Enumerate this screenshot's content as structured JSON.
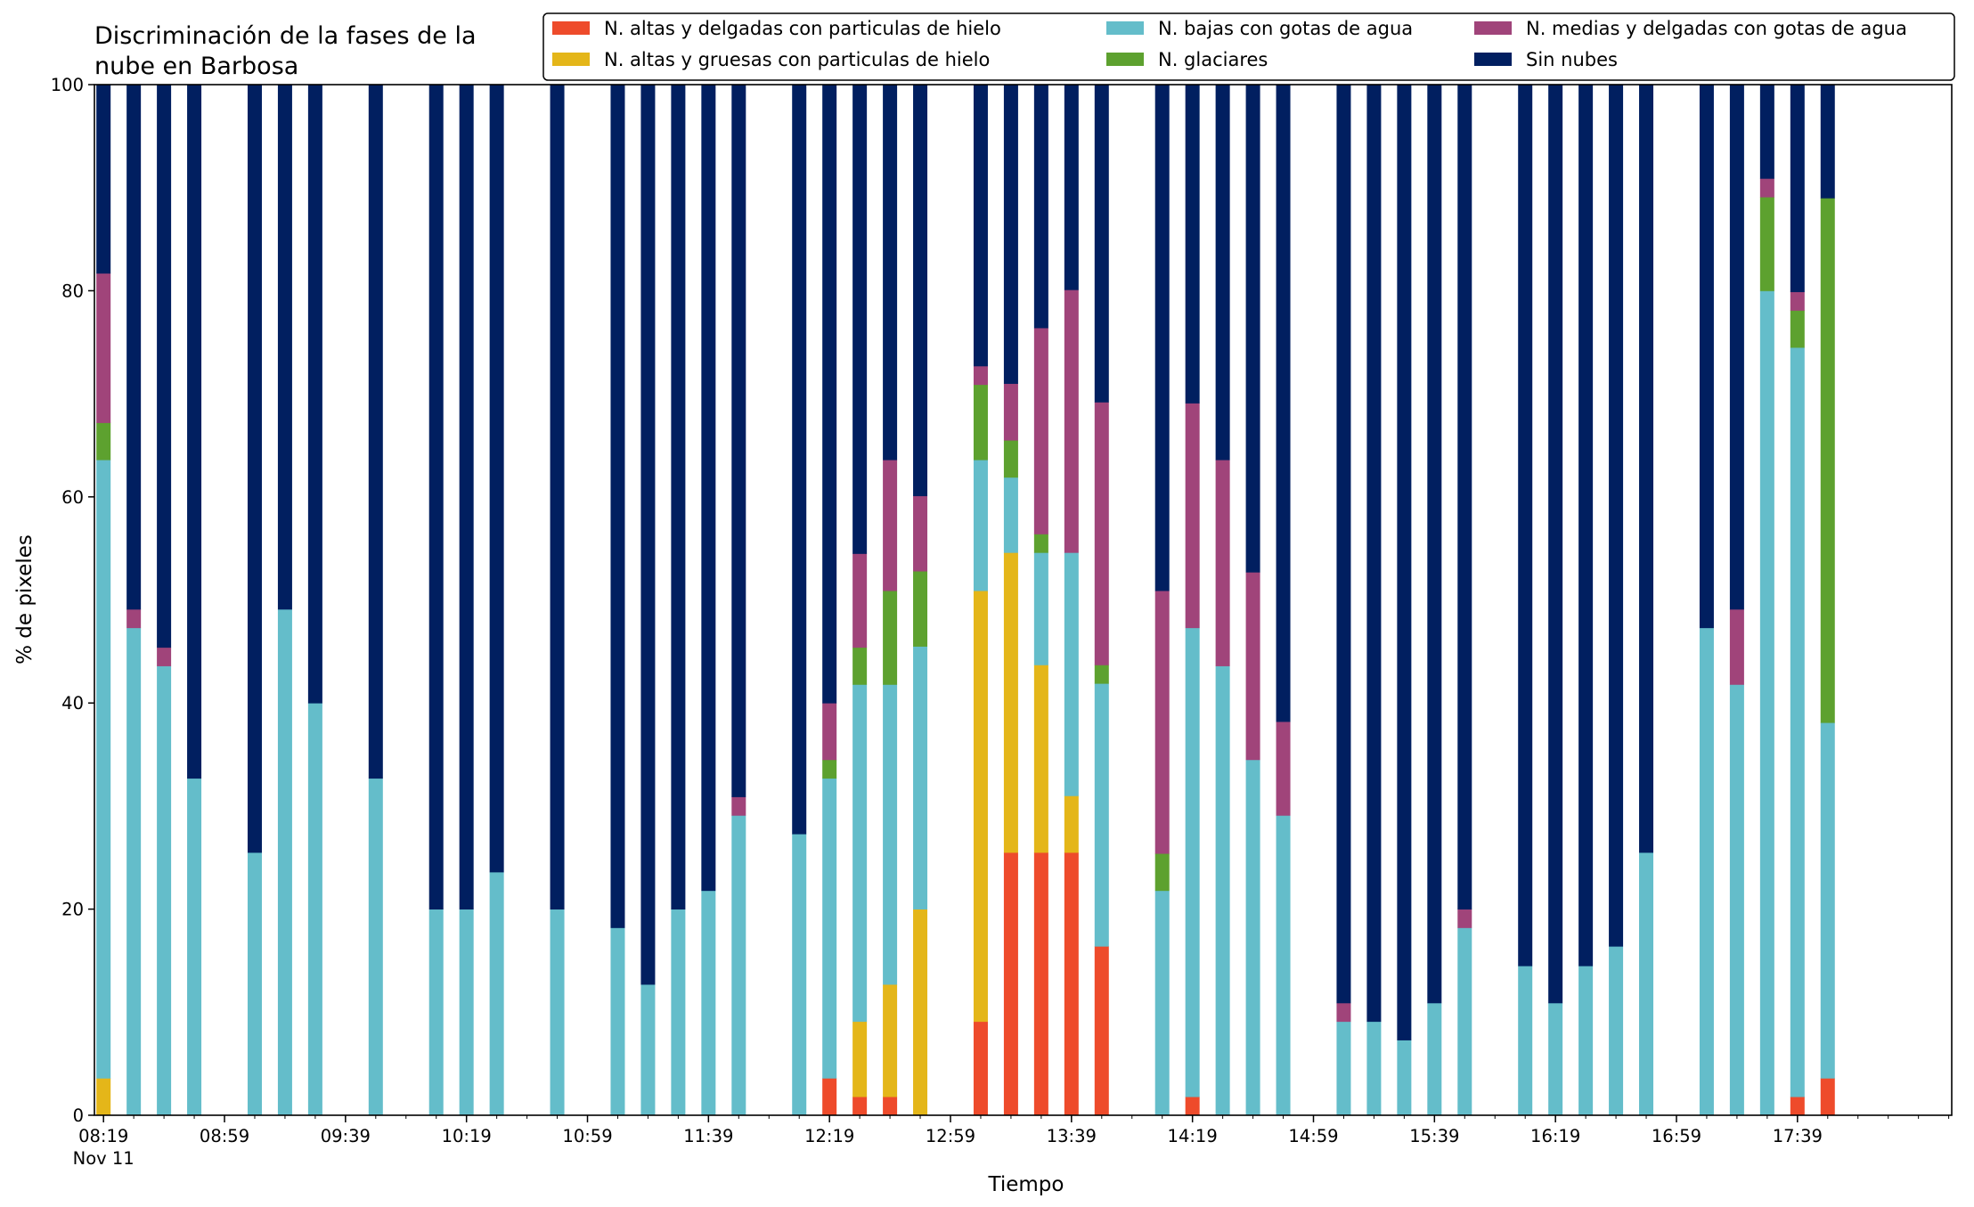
{
  "chart_data": {
    "type": "bar",
    "stacked": true,
    "title": "Discriminación de la fases de la nube en Barbosa",
    "title_lines": [
      "Discriminación de la fases de la",
      "nube en Barbosa"
    ],
    "xlabel": "Tiempo",
    "ylabel": "% de pixeles",
    "ylim": [
      0,
      100
    ],
    "yticks": [
      "0",
      "20",
      "40",
      "60",
      "80",
      "100"
    ],
    "x_ticks": [
      "08:19",
      "08:59",
      "09:39",
      "10:19",
      "10:59",
      "11:39",
      "12:19",
      "12:59",
      "13:39",
      "14:19",
      "14:59",
      "15:39",
      "16:19",
      "16:59",
      "17:39"
    ],
    "x_sub_label": "Nov 11",
    "x_range": [
      "08:16",
      "18:30"
    ],
    "grid": false,
    "legend_position": "top-right",
    "colors": {
      "alto_delgado_hielo": "#ee4b2b",
      "alto_grueso_hielo": "#e4b619",
      "bajo_agua": "#64bdca",
      "glaciar": "#5da12f",
      "medio_agua": "#a0447a",
      "sin_nubes": "#011f60"
    },
    "series": [
      {
        "key": "alto_delgado_hielo",
        "name": "N. altas y delgadas con particulas de hielo"
      },
      {
        "key": "alto_grueso_hielo",
        "name": "N. altas y gruesas con particulas de hielo"
      },
      {
        "key": "bajo_agua",
        "name": "N. bajas con gotas de agua"
      },
      {
        "key": "glaciar",
        "name": "N. glaciares"
      },
      {
        "key": "medio_agua",
        "name": "N. medias y delgadas con gotas de agua"
      },
      {
        "key": "sin_nubes",
        "name": "Sin nubes"
      }
    ],
    "bars": [
      {
        "time": "08:19",
        "values": [
          0,
          3.6,
          60,
          3.6,
          14.5,
          18.3
        ]
      },
      {
        "time": "08:29",
        "values": [
          0,
          0,
          47.3,
          0,
          1.8,
          50.9
        ]
      },
      {
        "time": "08:39",
        "values": [
          0,
          0,
          43.6,
          0,
          1.8,
          54.6
        ]
      },
      {
        "time": "08:49",
        "values": [
          0,
          0,
          32.7,
          0,
          0,
          67.3
        ]
      },
      {
        "time": "09:09",
        "values": [
          0,
          0,
          25.5,
          0,
          0,
          74.5
        ]
      },
      {
        "time": "09:19",
        "values": [
          0,
          0,
          49.1,
          0,
          0,
          50.9
        ]
      },
      {
        "time": "09:29",
        "values": [
          0,
          0,
          40,
          0,
          0,
          60
        ]
      },
      {
        "time": "09:49",
        "values": [
          0,
          0,
          32.7,
          0,
          0,
          67.3
        ]
      },
      {
        "time": "10:09",
        "values": [
          0,
          0,
          20,
          0,
          0,
          80
        ]
      },
      {
        "time": "10:19",
        "values": [
          0,
          0,
          20,
          0,
          0,
          80
        ]
      },
      {
        "time": "10:29",
        "values": [
          0,
          0,
          23.6,
          0,
          0,
          76.4
        ]
      },
      {
        "time": "10:49",
        "values": [
          0,
          0,
          20,
          0,
          0,
          80
        ]
      },
      {
        "time": "11:09",
        "values": [
          0,
          0,
          18.2,
          0,
          0,
          81.8
        ]
      },
      {
        "time": "11:19",
        "values": [
          0,
          0,
          12.7,
          0,
          0,
          87.3
        ]
      },
      {
        "time": "11:29",
        "values": [
          0,
          0,
          20,
          0,
          0,
          80
        ]
      },
      {
        "time": "11:39",
        "values": [
          0,
          0,
          21.8,
          0,
          0,
          78.2
        ]
      },
      {
        "time": "11:49",
        "values": [
          0,
          0,
          29.1,
          0,
          1.8,
          69.1
        ]
      },
      {
        "time": "12:09",
        "values": [
          0,
          0,
          27.3,
          0,
          0,
          72.7
        ]
      },
      {
        "time": "12:19",
        "values": [
          3.6,
          0,
          29.1,
          1.8,
          5.5,
          60
        ]
      },
      {
        "time": "12:29",
        "values": [
          1.8,
          7.3,
          32.7,
          3.6,
          9.1,
          45.5
        ]
      },
      {
        "time": "12:39",
        "values": [
          1.8,
          10.9,
          29.1,
          9.1,
          12.7,
          36.4
        ]
      },
      {
        "time": "12:49",
        "values": [
          0,
          20,
          25.5,
          7.3,
          7.3,
          39.9
        ]
      },
      {
        "time": "13:09",
        "values": [
          9.1,
          41.8,
          12.7,
          7.3,
          1.8,
          27.3
        ]
      },
      {
        "time": "13:19",
        "values": [
          25.5,
          29.1,
          7.3,
          3.6,
          5.5,
          29
        ]
      },
      {
        "time": "13:29",
        "values": [
          25.5,
          18.2,
          10.9,
          1.8,
          20,
          23.6
        ]
      },
      {
        "time": "13:39",
        "values": [
          25.5,
          5.5,
          23.6,
          0,
          25.5,
          19.9
        ]
      },
      {
        "time": "13:49",
        "values": [
          16.4,
          0,
          25.5,
          1.8,
          25.5,
          30.8
        ]
      },
      {
        "time": "14:09",
        "values": [
          0,
          0,
          21.8,
          3.6,
          25.5,
          49.1
        ]
      },
      {
        "time": "14:19",
        "values": [
          1.8,
          0,
          45.5,
          0,
          21.8,
          30.9
        ]
      },
      {
        "time": "14:29",
        "values": [
          0,
          0,
          43.6,
          0,
          20,
          36.4
        ]
      },
      {
        "time": "14:39",
        "values": [
          0,
          0,
          34.5,
          0,
          18.2,
          47.3
        ]
      },
      {
        "time": "14:49",
        "values": [
          0,
          0,
          29.1,
          0,
          9.1,
          61.8
        ]
      },
      {
        "time": "15:09",
        "values": [
          0,
          0,
          9.1,
          0,
          1.8,
          89.1
        ]
      },
      {
        "time": "15:19",
        "values": [
          0,
          0,
          9.1,
          0,
          0,
          90.9
        ]
      },
      {
        "time": "15:29",
        "values": [
          0,
          0,
          7.3,
          0,
          0,
          92.7
        ]
      },
      {
        "time": "15:39",
        "values": [
          0,
          0,
          10.9,
          0,
          0,
          89.1
        ]
      },
      {
        "time": "15:49",
        "values": [
          0,
          0,
          18.2,
          0,
          1.8,
          80
        ]
      },
      {
        "time": "16:09",
        "values": [
          0,
          0,
          14.5,
          0,
          0,
          85.5
        ]
      },
      {
        "time": "16:19",
        "values": [
          0,
          0,
          10.9,
          0,
          0,
          89.1
        ]
      },
      {
        "time": "16:29",
        "values": [
          0,
          0,
          14.5,
          0,
          0,
          85.5
        ]
      },
      {
        "time": "16:39",
        "values": [
          0,
          0,
          16.4,
          0,
          0,
          83.6
        ]
      },
      {
        "time": "16:49",
        "values": [
          0,
          0,
          25.5,
          0,
          0,
          74.5
        ]
      },
      {
        "time": "17:09",
        "values": [
          0,
          0,
          47.3,
          0,
          0,
          52.7
        ]
      },
      {
        "time": "17:19",
        "values": [
          0,
          0,
          41.8,
          0,
          7.3,
          50.9
        ]
      },
      {
        "time": "17:29",
        "values": [
          0,
          0,
          80,
          9.1,
          1.8,
          9.1
        ]
      },
      {
        "time": "17:39",
        "values": [
          1.8,
          0,
          72.7,
          3.6,
          1.8,
          20.1
        ]
      },
      {
        "time": "17:49",
        "values": [
          3.6,
          0,
          34.5,
          50.9,
          0,
          11
        ]
      }
    ]
  }
}
